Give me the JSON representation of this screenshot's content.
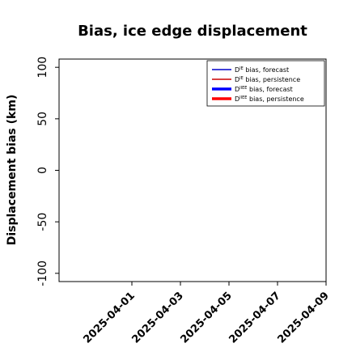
{
  "chart_data": {
    "type": "line",
    "title": "Bias, ice edge displacement",
    "xlabel": "",
    "ylabel": "Displacement bias (km)",
    "ylim": [
      -108,
      108
    ],
    "yticks": [
      -100,
      -50,
      0,
      50,
      100
    ],
    "ytick_labels": [
      "-100",
      "-50",
      "0",
      "50",
      "100"
    ],
    "xlim": [
      "2025-03-29",
      "2025-04-09"
    ],
    "xticks": [
      "2025-04-01",
      "2025-04-03",
      "2025-04-05",
      "2025-04-07",
      "2025-04-09"
    ],
    "xtick_labels": [
      "2025-04-01",
      "2025-04-03",
      "2025-04-05",
      "2025-04-07",
      "2025-04-09"
    ],
    "highlighted_xtick": "2025-04-01",
    "highlight_color": "#228b22",
    "grid": false,
    "legend_position": "top-right",
    "series": [
      {
        "name_base": "D",
        "name_sup": "IE",
        "name_rest": " bias, forecast",
        "color": "#0000cc",
        "width": "thin",
        "values": []
      },
      {
        "name_base": "D",
        "name_sup": "IE",
        "name_rest": " bias, persistence",
        "color": "#cc0000",
        "width": "thin",
        "values": []
      },
      {
        "name_base": "D",
        "name_sup": "IIEE",
        "name_rest": " bias, forecast",
        "color": "#0000ff",
        "width": "thick",
        "values": []
      },
      {
        "name_base": "D",
        "name_sup": "IIEE",
        "name_rest": " bias, persistence",
        "color": "#ff0000",
        "width": "thick",
        "values": []
      }
    ]
  }
}
